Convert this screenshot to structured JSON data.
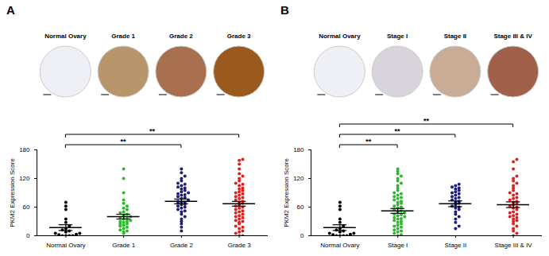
{
  "chart_data": [
    {
      "type": "scatter",
      "title": "A",
      "categories": [
        "Normal Ovary",
        "Grade 1",
        "Grade 2",
        "Grade 3"
      ],
      "colors": [
        "#000000",
        "#2eb82e",
        "#1f1f7a",
        "#e02020"
      ],
      "values": [
        [
          0,
          0,
          0,
          0,
          2,
          3,
          5,
          5,
          8,
          10,
          12,
          15,
          20,
          28,
          35,
          55,
          62,
          70
        ],
        [
          5,
          8,
          10,
          12,
          15,
          18,
          20,
          22,
          25,
          25,
          28,
          30,
          30,
          32,
          35,
          36,
          38,
          40,
          42,
          45,
          48,
          50,
          55,
          58,
          62,
          68,
          75,
          90,
          120,
          140
        ],
        [
          10,
          18,
          25,
          30,
          35,
          40,
          45,
          50,
          52,
          55,
          58,
          60,
          62,
          65,
          66,
          68,
          70,
          70,
          72,
          75,
          78,
          80,
          82,
          85,
          86,
          88,
          90,
          92,
          95,
          98,
          100,
          102,
          105,
          108,
          110,
          115,
          120,
          125,
          132,
          140
        ],
        [
          0,
          0,
          5,
          8,
          10,
          15,
          18,
          20,
          25,
          28,
          30,
          32,
          35,
          38,
          40,
          42,
          45,
          48,
          50,
          52,
          55,
          58,
          60,
          62,
          65,
          68,
          70,
          72,
          75,
          78,
          80,
          82,
          85,
          88,
          90,
          92,
          95,
          98,
          100,
          105,
          108,
          110,
          115,
          120,
          125,
          130,
          140,
          150,
          158,
          160
        ]
      ],
      "mean": [
        17,
        40,
        72,
        67
      ],
      "sem": [
        6,
        5,
        5,
        5
      ],
      "ylabel": "PKM2 Expression Score",
      "ylim": [
        0,
        180
      ],
      "yticks": [
        0,
        60,
        120,
        180
      ],
      "annotations": [
        {
          "from": "Normal Ovary",
          "to": "Grade 2",
          "label": "**"
        },
        {
          "from": "Normal Ovary",
          "to": "Grade 3",
          "label": "**"
        }
      ]
    },
    {
      "type": "scatter",
      "title": "B",
      "categories": [
        "Normal Ovary",
        "Stage I",
        "Stage II",
        "Stage III & IV"
      ],
      "colors": [
        "#000000",
        "#2eb82e",
        "#1f1f7a",
        "#e02020"
      ],
      "values": [
        [
          0,
          0,
          0,
          0,
          2,
          3,
          5,
          5,
          8,
          10,
          12,
          15,
          20,
          28,
          35,
          55,
          62,
          70
        ],
        [
          0,
          2,
          5,
          8,
          10,
          12,
          15,
          18,
          20,
          22,
          25,
          28,
          30,
          32,
          35,
          36,
          38,
          40,
          42,
          44,
          45,
          48,
          50,
          52,
          55,
          58,
          60,
          62,
          65,
          68,
          70,
          72,
          75,
          78,
          80,
          82,
          85,
          88,
          90,
          95,
          100,
          105,
          110,
          115,
          120,
          125,
          130,
          135,
          140
        ],
        [
          15,
          20,
          28,
          35,
          40,
          45,
          50,
          55,
          58,
          60,
          62,
          65,
          68,
          70,
          72,
          75,
          78,
          80,
          82,
          85,
          88,
          90,
          92,
          95,
          98,
          100,
          102,
          105,
          108
        ],
        [
          0,
          5,
          10,
          15,
          20,
          25,
          30,
          32,
          35,
          38,
          40,
          42,
          45,
          48,
          50,
          55,
          58,
          60,
          62,
          65,
          68,
          70,
          72,
          75,
          78,
          80,
          85,
          88,
          90,
          95,
          100,
          105,
          110,
          115,
          120,
          125,
          140,
          155,
          160
        ]
      ],
      "mean": [
        17,
        52,
        67,
        65
      ],
      "sem": [
        6,
        5,
        6,
        6
      ],
      "ylabel": "PKM2 Expression Score",
      "ylim": [
        0,
        180
      ],
      "yticks": [
        0,
        60,
        120,
        180
      ],
      "annotations": [
        {
          "from": "Normal Ovary",
          "to": "Stage I",
          "label": "**"
        },
        {
          "from": "Normal Ovary",
          "to": "Stage II",
          "label": "**"
        },
        {
          "from": "Normal Ovary",
          "to": "Stage III & IV",
          "label": "**"
        }
      ]
    }
  ]
}
